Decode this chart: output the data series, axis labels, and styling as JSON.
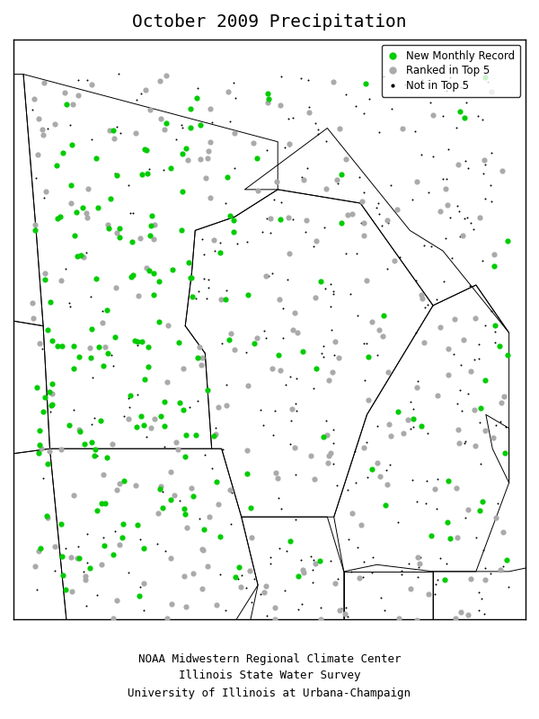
{
  "title": "October 2009 Precipitation",
  "footer_lines": [
    "NOAA Midwestern Regional Climate Center",
    "Illinois State Water Survey",
    "University of Illinois at Urbana-Champaign"
  ],
  "legend_labels": [
    "New Monthly Record",
    "Ranked in Top 5",
    "Not in Top 5"
  ],
  "legend_colors": [
    "#00cc00",
    "#aaaaaa",
    "#333333"
  ],
  "legend_sizes": [
    7,
    7,
    2
  ],
  "legend_markers": [
    "o",
    "o",
    "."
  ],
  "map_bounds": [
    -97.5,
    -82.0,
    41.0,
    49.5
  ],
  "background_color": "#ffffff",
  "border_color": "#000000",
  "seed_green": 42,
  "seed_gray": 123,
  "seed_black": 999
}
